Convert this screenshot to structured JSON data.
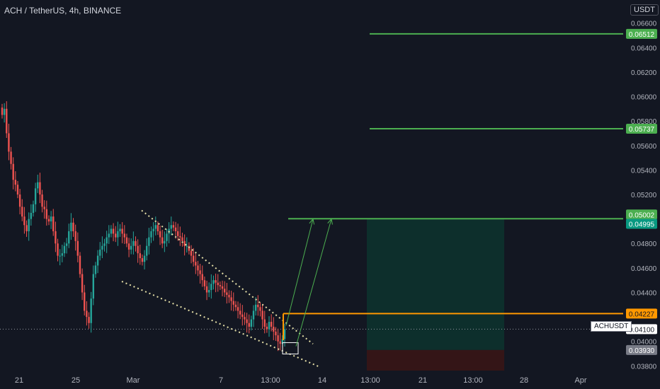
{
  "header": {
    "symbol_title": "ACH / TetherUS, 4h, BINANCE",
    "currency": "USDT",
    "ticker": "ACHUSDT"
  },
  "colors": {
    "background": "#131722",
    "up": "#26a69a",
    "down": "#ef5350",
    "target_line": "#4caf50",
    "entry_line": "#ff9800",
    "wedge": "#e6e0a8",
    "profit_zone": "#0c3830",
    "loss_zone": "#3b1515",
    "axis_text": "#b2b5be"
  },
  "chart_data": {
    "type": "candlestick",
    "title": "ACH / TetherUS, 4h, BINANCE",
    "y_axis": {
      "scale": "linear",
      "range": [
        0.0375,
        0.0665
      ],
      "tick_labels": [
        "0.06600",
        "0.06400",
        "0.06200",
        "0.06000",
        "0.05800",
        "0.05600",
        "0.05400",
        "0.05200",
        "0.04800",
        "0.04600",
        "0.04400",
        "0.04000",
        "0.03800"
      ]
    },
    "x_axis": {
      "tick_labels": [
        "21",
        "25",
        "Mar",
        "7",
        "13:00",
        "14",
        "13:00",
        "21",
        "13:00",
        "28",
        "Apr"
      ]
    },
    "price_labels": [
      {
        "value": "0.06512",
        "kind": "target"
      },
      {
        "value": "0.05737",
        "kind": "target"
      },
      {
        "value": "0.05002",
        "kind": "target"
      },
      {
        "value": "0.04995",
        "kind": "profit-boundary"
      },
      {
        "value": "0.04227",
        "kind": "entry"
      },
      {
        "value": "0.04100",
        "kind": "last-price"
      },
      {
        "value": "0.03930",
        "kind": "stop"
      }
    ],
    "levels": {
      "target_1": 0.05002,
      "target_2": 0.05737,
      "target_3": 0.06512,
      "entry": 0.04227,
      "last": 0.041,
      "stop": 0.0393
    },
    "falling_wedge": {
      "upper": {
        "start": [
          "Mar",
          0.0507
        ],
        "end": [
          "14",
          0.0398
        ]
      },
      "lower": {
        "start": [
          "Mar",
          0.0449
        ],
        "end": [
          "14",
          0.0379
        ]
      }
    },
    "approx_closes": [
      0.0585,
      0.059,
      0.057,
      0.0555,
      0.0545,
      0.0532,
      0.0528,
      0.052,
      0.051,
      0.0502,
      0.0495,
      0.049,
      0.05,
      0.0505,
      0.0512,
      0.0525,
      0.053,
      0.052,
      0.051,
      0.0508,
      0.05,
      0.0498,
      0.0502,
      0.049,
      0.048,
      0.047,
      0.047,
      0.0472,
      0.0478,
      0.048,
      0.049,
      0.0497,
      0.049,
      0.0482,
      0.047,
      0.0455,
      0.044,
      0.0425,
      0.042,
      0.0415,
      0.0435,
      0.0455,
      0.0462,
      0.047,
      0.0475,
      0.0478,
      0.048,
      0.0485,
      0.0488,
      0.0492,
      0.0488,
      0.0485,
      0.049,
      0.0492,
      0.0488,
      0.0485,
      0.048,
      0.0475,
      0.0478,
      0.0482,
      0.0478,
      0.0472,
      0.0468,
      0.0465,
      0.047,
      0.0478,
      0.0485,
      0.049,
      0.0492,
      0.0495,
      0.049,
      0.0485,
      0.048,
      0.0482,
      0.0488,
      0.0492,
      0.0495,
      0.0493,
      0.049,
      0.0486,
      0.0485,
      0.0482,
      0.0478,
      0.0478,
      0.0474,
      0.047,
      0.0465,
      0.0462,
      0.0458,
      0.0455,
      0.045,
      0.0445,
      0.044,
      0.0442,
      0.0447,
      0.045,
      0.0448,
      0.0446,
      0.0445,
      0.0443,
      0.044,
      0.0438,
      0.0436,
      0.0433,
      0.043,
      0.0428,
      0.0425,
      0.0422,
      0.042,
      0.0418,
      0.0415,
      0.0412,
      0.0418,
      0.0425,
      0.043,
      0.0428,
      0.0425,
      0.0418,
      0.0412,
      0.041,
      0.0416,
      0.0412,
      0.0408,
      0.0405,
      0.04,
      0.0398,
      0.0402,
      0.041
    ]
  }
}
